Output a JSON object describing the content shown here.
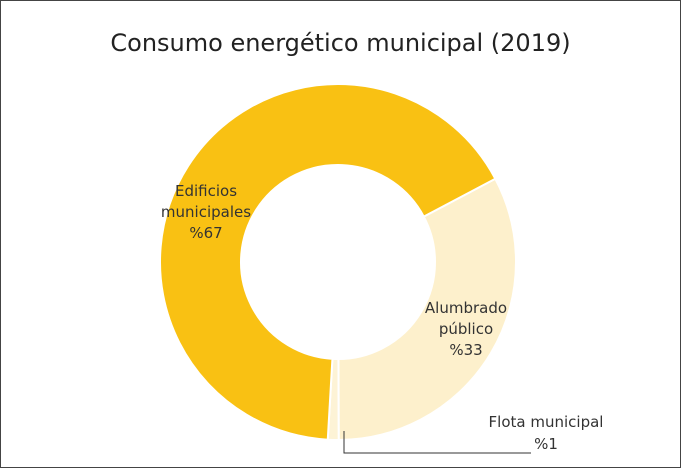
{
  "chart_data": {
    "type": "donut",
    "title": "Consumo energético municipal (2019)",
    "categories": [
      "Edificios municipales",
      "Alumbrado público",
      "Flota municipal"
    ],
    "values": [
      67,
      33,
      1
    ],
    "value_labels": [
      "%67",
      "%33",
      "%1"
    ],
    "colors": [
      "#f9c113",
      "#fdf0cc",
      "#fdf3d6"
    ]
  }
}
